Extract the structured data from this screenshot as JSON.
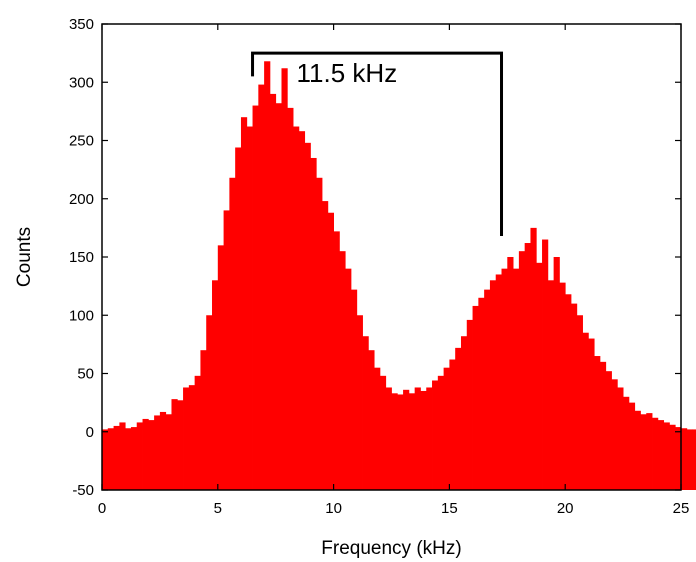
{
  "chart_data": {
    "type": "bar",
    "title": "",
    "xlabel": "Frequency (kHz)",
    "ylabel": "Counts",
    "xlim": [
      0,
      25
    ],
    "ylim": [
      -50,
      350
    ],
    "xticks": [
      0,
      5,
      10,
      15,
      20,
      25
    ],
    "yticks": [
      -50,
      0,
      50,
      100,
      150,
      200,
      250,
      300,
      350
    ],
    "bin_start": 0,
    "bin_width": 0.25,
    "bar_color": "#ff0000",
    "grid": false,
    "legend": "none",
    "values": [
      2,
      3,
      5,
      8,
      3,
      4,
      8,
      11,
      10,
      14,
      17,
      15,
      28,
      27,
      38,
      40,
      48,
      70,
      100,
      130,
      160,
      190,
      218,
      244,
      270,
      262,
      280,
      298,
      318,
      290,
      282,
      312,
      278,
      262,
      258,
      248,
      235,
      218,
      198,
      188,
      172,
      155,
      140,
      122,
      100,
      82,
      70,
      55,
      48,
      38,
      33,
      32,
      36,
      33,
      38,
      35,
      38,
      44,
      48,
      55,
      62,
      72,
      82,
      96,
      108,
      115,
      122,
      130,
      135,
      140,
      150,
      140,
      155,
      162,
      175,
      145,
      165,
      130,
      150,
      128,
      118,
      110,
      100,
      85,
      80,
      65,
      60,
      52,
      45,
      38,
      30,
      25,
      18,
      15,
      16,
      12,
      10,
      8,
      6,
      4,
      3,
      2,
      2,
      1,
      1,
      0
    ]
  },
  "annotation": {
    "label": "11.5 kHz",
    "from_x": 6.5,
    "to_x": 17.25,
    "bracket_y": 325,
    "left_drop_y": 305,
    "right_drop_y": 168
  }
}
